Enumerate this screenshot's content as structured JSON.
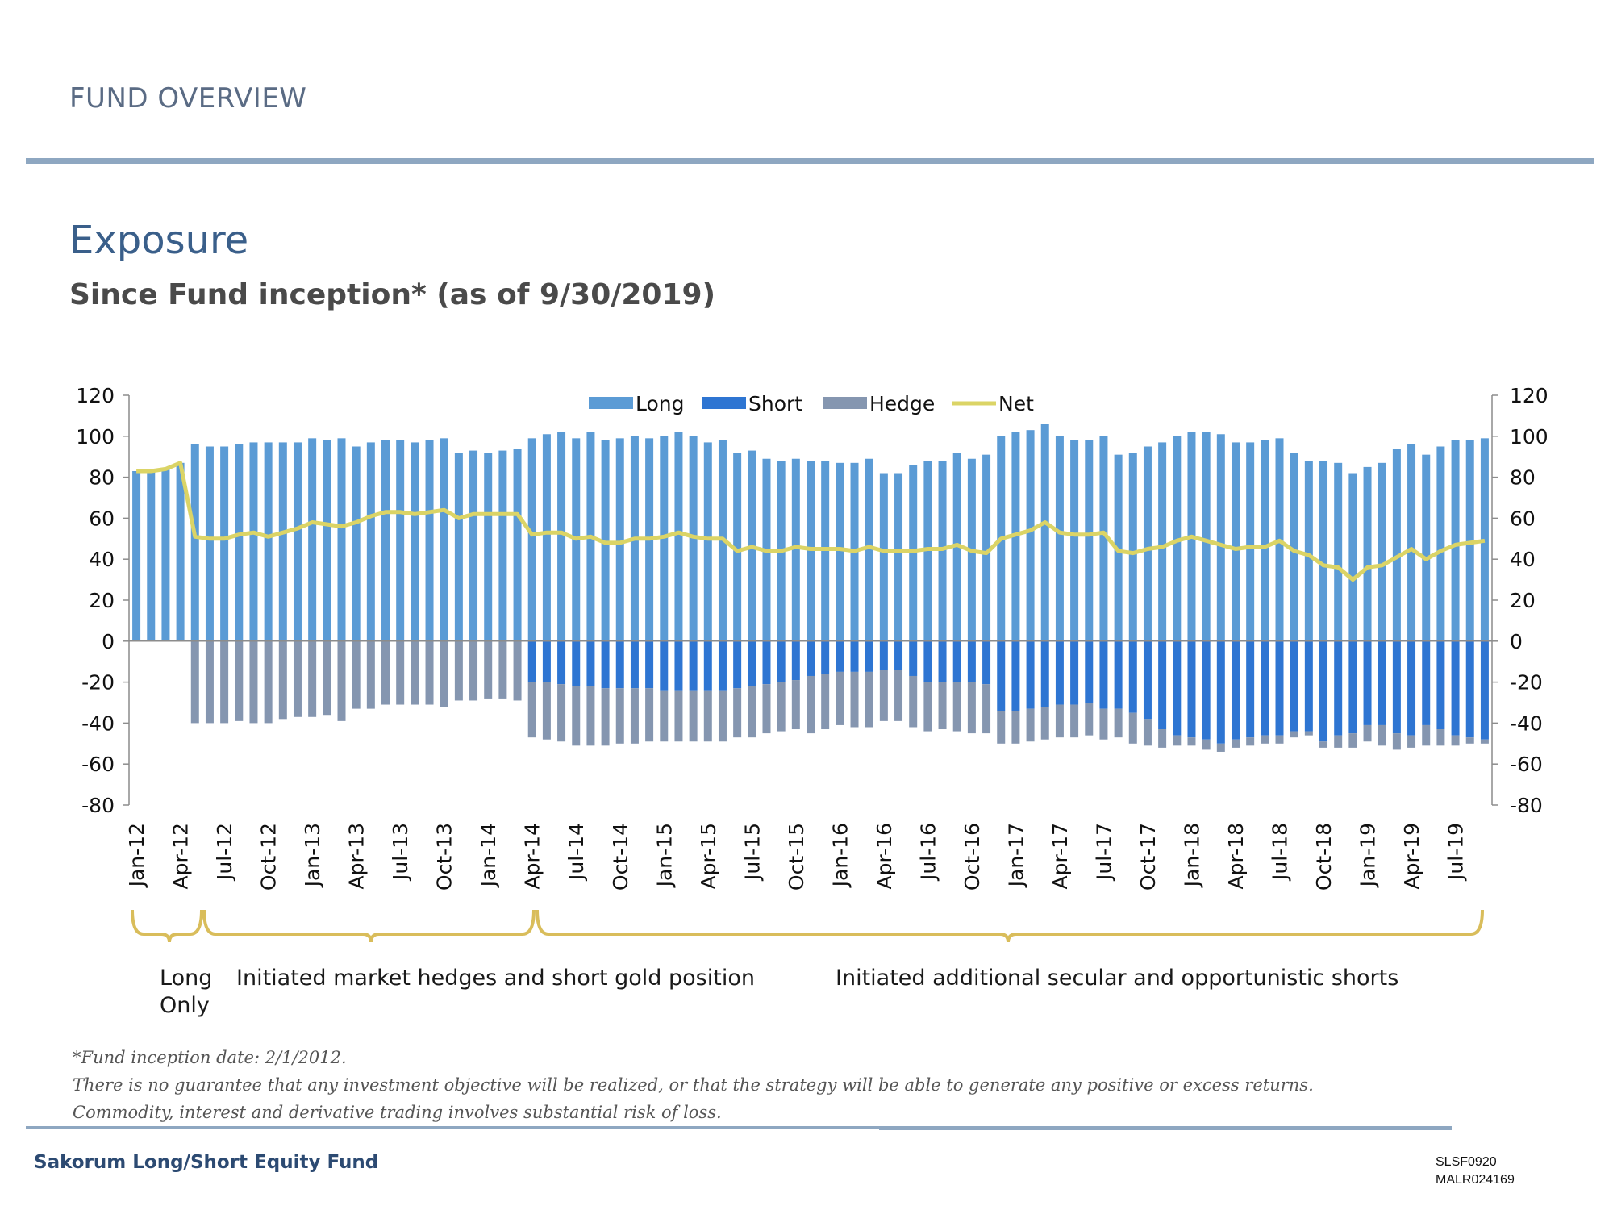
{
  "header": {
    "section_label": "FUND OVERVIEW"
  },
  "title": "Exposure",
  "subtitle": "Since Fund inception* (as of 9/30/2019)",
  "chart_data": {
    "type": "bar",
    "stacked": true,
    "x": [
      "Jan-12",
      "Feb-12",
      "Mar-12",
      "Apr-12",
      "May-12",
      "Jun-12",
      "Jul-12",
      "Aug-12",
      "Sep-12",
      "Oct-12",
      "Nov-12",
      "Dec-12",
      "Jan-13",
      "Feb-13",
      "Mar-13",
      "Apr-13",
      "May-13",
      "Jun-13",
      "Jul-13",
      "Aug-13",
      "Sep-13",
      "Oct-13",
      "Nov-13",
      "Dec-13",
      "Jan-14",
      "Feb-14",
      "Mar-14",
      "Apr-14",
      "May-14",
      "Jun-14",
      "Jul-14",
      "Aug-14",
      "Sep-14",
      "Oct-14",
      "Nov-14",
      "Dec-14",
      "Jan-15",
      "Feb-15",
      "Mar-15",
      "Apr-15",
      "May-15",
      "Jun-15",
      "Jul-15",
      "Aug-15",
      "Sep-15",
      "Oct-15",
      "Nov-15",
      "Dec-15",
      "Jan-16",
      "Feb-16",
      "Mar-16",
      "Apr-16",
      "May-16",
      "Jun-16",
      "Jul-16",
      "Aug-16",
      "Sep-16",
      "Oct-16",
      "Nov-16",
      "Dec-16",
      "Jan-17",
      "Feb-17",
      "Mar-17",
      "Apr-17",
      "May-17",
      "Jun-17",
      "Jul-17",
      "Aug-17",
      "Sep-17",
      "Oct-17",
      "Nov-17",
      "Dec-17",
      "Jan-18",
      "Feb-18",
      "Mar-18",
      "Apr-18",
      "May-18",
      "Jun-18",
      "Jul-18",
      "Aug-18",
      "Sep-18",
      "Oct-18",
      "Nov-18",
      "Dec-18",
      "Jan-19",
      "Feb-19",
      "Mar-19",
      "Apr-19",
      "May-19",
      "Jun-19",
      "Jul-19",
      "Aug-19",
      "Sep-19"
    ],
    "tick_labels": [
      "Jan-12",
      "Apr-12",
      "Jul-12",
      "Oct-12",
      "Jan-13",
      "Apr-13",
      "Jul-13",
      "Oct-13",
      "Jan-14",
      "Apr-14",
      "Jul-14",
      "Oct-14",
      "Jan-15",
      "Apr-15",
      "Jul-15",
      "Oct-15",
      "Jan-16",
      "Apr-16",
      "Jul-16",
      "Oct-16",
      "Jan-17",
      "Apr-17",
      "Jul-17",
      "Oct-17",
      "Jan-18",
      "Apr-18",
      "Jul-18",
      "Oct-18",
      "Jan-19",
      "Apr-19",
      "Jul-19"
    ],
    "series": [
      {
        "name": "Long",
        "type": "bar",
        "color": "#5b9bd5",
        "values": [
          83,
          83,
          84,
          87,
          96,
          95,
          95,
          96,
          97,
          97,
          97,
          97,
          99,
          98,
          99,
          95,
          97,
          98,
          98,
          97,
          98,
          99,
          92,
          93,
          92,
          93,
          94,
          99,
          101,
          102,
          99,
          102,
          98,
          99,
          100,
          99,
          100,
          102,
          100,
          97,
          98,
          92,
          93,
          89,
          88,
          89,
          88,
          88,
          87,
          87,
          89,
          82,
          82,
          86,
          88,
          88,
          92,
          89,
          91,
          100,
          102,
          103,
          106,
          100,
          98,
          98,
          100,
          91,
          92,
          95,
          97,
          100,
          102,
          102,
          101,
          97,
          97,
          98,
          99,
          92,
          88,
          88,
          87,
          82,
          85,
          87,
          94,
          96,
          91,
          95,
          98,
          98,
          99
        ]
      },
      {
        "name": "Short",
        "type": "bar",
        "color": "#2e75d2",
        "values": [
          0,
          0,
          0,
          0,
          0,
          0,
          0,
          0,
          0,
          0,
          0,
          0,
          0,
          0,
          0,
          0,
          0,
          0,
          0,
          0,
          0,
          0,
          0,
          0,
          0,
          0,
          0,
          -20,
          -20,
          -21,
          -22,
          -22,
          -23,
          -23,
          -23,
          -23,
          -24,
          -24,
          -24,
          -24,
          -24,
          -23,
          -22,
          -21,
          -20,
          -19,
          -17,
          -16,
          -15,
          -15,
          -15,
          -14,
          -14,
          -17,
          -20,
          -20,
          -20,
          -20,
          -21,
          -34,
          -34,
          -33,
          -32,
          -31,
          -31,
          -30,
          -33,
          -33,
          -35,
          -38,
          -43,
          -46,
          -47,
          -48,
          -50,
          -48,
          -47,
          -46,
          -46,
          -44,
          -44,
          -49,
          -46,
          -45,
          -41,
          -41,
          -45,
          -46,
          -41,
          -43,
          -46,
          -47,
          -48
        ]
      },
      {
        "name": "Hedge",
        "type": "bar",
        "color": "#8596b0",
        "values": [
          0,
          0,
          0,
          0,
          -40,
          -40,
          -40,
          -39,
          -40,
          -40,
          -38,
          -37,
          -37,
          -36,
          -39,
          -33,
          -33,
          -31,
          -31,
          -31,
          -31,
          -32,
          -29,
          -29,
          -28,
          -28,
          -29,
          -27,
          -28,
          -28,
          -29,
          -29,
          -28,
          -27,
          -27,
          -26,
          -25,
          -25,
          -25,
          -25,
          -25,
          -24,
          -25,
          -24,
          -24,
          -24,
          -28,
          -27,
          -26,
          -27,
          -27,
          -25,
          -25,
          -25,
          -24,
          -23,
          -24,
          -25,
          -24,
          -16,
          -16,
          -16,
          -16,
          -16,
          -16,
          -16,
          -15,
          -14,
          -15,
          -13,
          -9,
          -5,
          -4,
          -5,
          -4,
          -4,
          -4,
          -4,
          -4,
          -3,
          -2,
          -3,
          -6,
          -7,
          -8,
          -10,
          -8,
          -6,
          -10,
          -8,
          -5,
          -3,
          -2
        ]
      },
      {
        "name": "Net",
        "type": "line",
        "color": "#dbd466",
        "values": [
          83,
          83,
          84,
          87,
          51,
          50,
          50,
          52,
          53,
          51,
          53,
          55,
          58,
          57,
          56,
          58,
          61,
          63,
          63,
          62,
          63,
          64,
          60,
          62,
          62,
          62,
          62,
          52,
          53,
          53,
          50,
          51,
          48,
          48,
          50,
          50,
          51,
          53,
          51,
          50,
          50,
          44,
          46,
          44,
          44,
          46,
          45,
          45,
          45,
          44,
          46,
          44,
          44,
          44,
          45,
          45,
          47,
          44,
          43,
          50,
          52,
          54,
          58,
          53,
          52,
          52,
          53,
          44,
          43,
          45,
          46,
          49,
          51,
          49,
          47,
          45,
          46,
          46,
          49,
          44,
          42,
          37,
          36,
          30,
          36,
          37,
          41,
          45,
          40,
          44,
          47,
          48,
          49
        ]
      }
    ],
    "ylim": [
      -80,
      120
    ],
    "yticks": [
      -80,
      -60,
      -40,
      -20,
      0,
      20,
      40,
      60,
      80,
      100,
      120
    ],
    "legend_position": "top-center",
    "grid": false,
    "secondary_y_axis": true
  },
  "annotations": {
    "long_only": "Long\nOnly",
    "phase2": "Initiated market hedges and short gold position",
    "phase3": "Initiated additional secular and opportunistic shorts"
  },
  "footnotes": [
    "*Fund inception date: 2/1/2012.",
    "There is no guarantee that any investment objective will be realized, or that the strategy will be able to generate any positive or excess returns.",
    "Commodity, interest and derivative trading involves substantial risk of loss."
  ],
  "footer": {
    "fund_name": "Sakorum Long/Short Equity Fund",
    "code1": "SLSF0920",
    "code2": "MALR024169"
  }
}
